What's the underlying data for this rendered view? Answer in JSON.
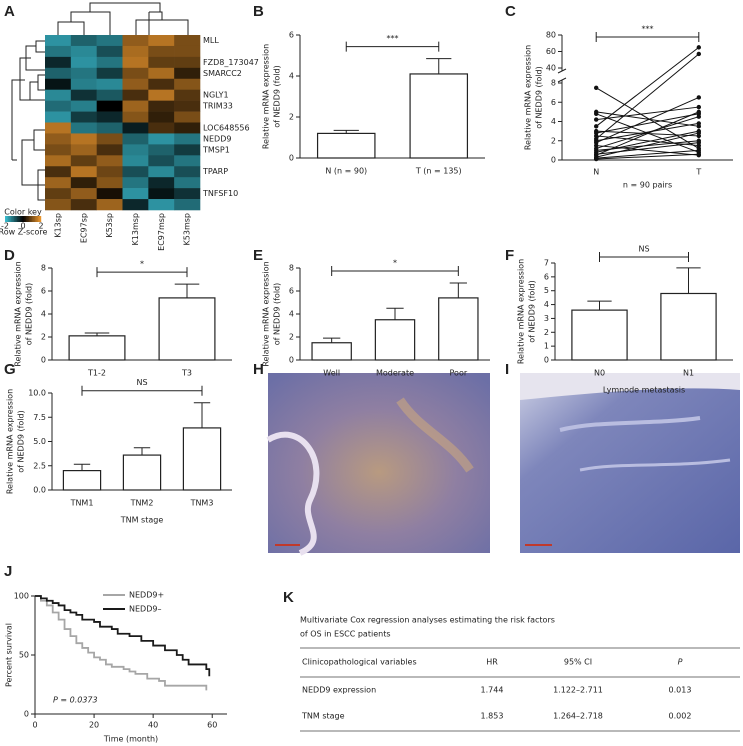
{
  "chart_data": [
    {
      "type": "heatmap",
      "panel": "A",
      "columns": [
        "K13sp",
        "EC97sp",
        "K53sp",
        "K13msp",
        "EC97msp",
        "K53msp"
      ],
      "row_labels": [
        "MLL",
        null,
        "FZD8_173047",
        "SMARCC2",
        null,
        "NGLY1",
        "TRIM33",
        null,
        "LOC648556",
        "NEDD9",
        "TMSP1",
        null,
        "TPARP",
        null,
        "TNFSF10",
        null
      ],
      "values": [
        [
          -1.5,
          -1.0,
          -1.2,
          1.2,
          1.5,
          1.0
        ],
        [
          -1.2,
          -1.4,
          -0.8,
          1.4,
          1.0,
          1.0
        ],
        [
          -0.4,
          -1.5,
          -1.2,
          1.5,
          0.8,
          0.8
        ],
        [
          -1.0,
          -1.2,
          -0.6,
          1.0,
          1.4,
          0.4
        ],
        [
          -0.2,
          -1.3,
          -1.4,
          1.2,
          0.6,
          1.1
        ],
        [
          -1.4,
          -0.5,
          -0.9,
          0.6,
          1.5,
          0.7
        ],
        [
          -1.1,
          -1.3,
          0.0,
          1.3,
          0.5,
          0.6
        ],
        [
          -1.5,
          -0.6,
          -0.4,
          1.1,
          0.4,
          1.0
        ],
        [
          1.5,
          -1.2,
          -1.0,
          -0.3,
          0.6,
          0.4
        ],
        [
          1.2,
          1.5,
          1.0,
          -1.0,
          -1.5,
          -1.2
        ],
        [
          1.0,
          1.3,
          0.6,
          -1.3,
          -1.0,
          -0.6
        ],
        [
          1.4,
          0.8,
          1.2,
          -1.4,
          -0.8,
          -1.2
        ],
        [
          0.6,
          1.5,
          0.9,
          -0.8,
          -1.4,
          -0.8
        ],
        [
          1.3,
          0.4,
          1.1,
          -1.2,
          -0.4,
          -1.2
        ],
        [
          0.8,
          1.2,
          0.2,
          -1.5,
          -0.2,
          -0.5
        ],
        [
          1.1,
          0.6,
          1.3,
          -0.4,
          -1.5,
          -1.1
        ]
      ],
      "zlim": [
        -2,
        2
      ],
      "zticks": [
        -2,
        0,
        2
      ],
      "colors": [
        "#3cc3d6",
        "#000000",
        "#f29a2e"
      ],
      "color_key_title": "Color key",
      "color_key_label": "Row Z-score"
    },
    {
      "type": "bar",
      "panel": "B",
      "categories": [
        "N (n = 90)",
        "T (n = 135)"
      ],
      "values": [
        1.2,
        4.1
      ],
      "errors": [
        0.15,
        0.75
      ],
      "ylim": [
        0,
        6
      ],
      "yticks": [
        0,
        2,
        4,
        6
      ],
      "ylabel": [
        "Relative mRNA expression",
        "of NEDD9 (fold)"
      ],
      "significance": "***"
    },
    {
      "type": "paired",
      "panel": "C",
      "categories": [
        "N",
        "T"
      ],
      "N": [
        7.5,
        5,
        4.8,
        4.2,
        3.5,
        3,
        2.8,
        2.5,
        2.2,
        2,
        1.8,
        1.5,
        1.2,
        1,
        0.8,
        0.6,
        0.5,
        0.3,
        0.2,
        0.1
      ],
      "T": [
        1.2,
        3.5,
        0.8,
        5.5,
        65,
        2.5,
        4.8,
        1.5,
        57,
        3.8,
        6.5,
        0.5,
        4.5,
        2,
        3,
        1.8,
        5,
        2.8,
        1,
        0.6
      ],
      "ylim": [
        0,
        80
      ],
      "ybreak": [
        8,
        40
      ],
      "yticks": [
        0,
        2,
        4,
        6,
        8,
        40,
        60,
        80
      ],
      "ylabel": [
        "Relative mRNA expression",
        "of NEDD9 (fold)"
      ],
      "xlabel": "n = 90 pairs",
      "significance": "***"
    },
    {
      "type": "bar",
      "panel": "D",
      "categories": [
        "T1-2",
        "T3"
      ],
      "values": [
        2.1,
        5.4
      ],
      "errors": [
        0.25,
        1.2
      ],
      "ylim": [
        0,
        8
      ],
      "yticks": [
        0,
        2,
        4,
        6,
        8
      ],
      "ylabel": [
        "Relative mRNA expression",
        "of NEDD9 (fold)"
      ],
      "significance": "*"
    },
    {
      "type": "bar",
      "panel": "E",
      "categories": [
        "Well",
        "Moderate",
        "Poor"
      ],
      "values": [
        1.5,
        3.5,
        5.4
      ],
      "errors": [
        0.4,
        1.0,
        1.3
      ],
      "ylim": [
        0,
        8
      ],
      "yticks": [
        0,
        2,
        4,
        6,
        8
      ],
      "ylabel": [
        "Relative mRNA expression",
        "of NEDD9 (fold)"
      ],
      "significance": "*"
    },
    {
      "type": "bar",
      "panel": "F",
      "categories": [
        "N0",
        "N1"
      ],
      "values": [
        3.6,
        4.8
      ],
      "errors": [
        0.65,
        1.85
      ],
      "ylim": [
        0,
        7
      ],
      "yticks": [
        0,
        1,
        2,
        3,
        4,
        5,
        6,
        7
      ],
      "ylabel": [
        "Relative mRNA expression",
        "of NEDD9 (fold)"
      ],
      "xlabel": "Lymnode metastasis",
      "significance": "NS"
    },
    {
      "type": "bar",
      "panel": "G",
      "categories": [
        "TNM1",
        "TNM2",
        "TNM3"
      ],
      "values": [
        2.0,
        3.6,
        6.4
      ],
      "errors": [
        0.65,
        0.75,
        2.6
      ],
      "ylim": [
        0,
        10
      ],
      "yticks": [
        {
          "value": 0,
          "label": "0.0"
        },
        {
          "value": 2.5,
          "label": "2.5"
        },
        {
          "value": 5,
          "label": "5.0"
        },
        {
          "value": 7.5,
          "label": "7.5"
        },
        {
          "value": 10,
          "label": "10.0"
        }
      ],
      "ylabel": [
        "Relative mRNA expression",
        "of NEDD9 (fold)"
      ],
      "xlabel": "TNM stage",
      "significance": "NS"
    },
    {
      "type": "step",
      "panel": "J",
      "series": [
        {
          "name": "NEDD9+",
          "color": "#a6a6a6",
          "x": [
            0,
            2,
            4,
            6,
            8,
            10,
            12,
            14,
            16,
            18,
            20,
            22,
            24,
            26,
            30,
            32,
            34,
            38,
            42,
            44,
            58
          ],
          "values": [
            100,
            96,
            92,
            86,
            80,
            72,
            66,
            60,
            56,
            52,
            48,
            46,
            42,
            40,
            38,
            36,
            34,
            30,
            28,
            24,
            20
          ]
        },
        {
          "name": "NEDD9–",
          "color": "#1a1a1a",
          "x": [
            0,
            2,
            4,
            6,
            8,
            10,
            12,
            14,
            16,
            20,
            22,
            26,
            28,
            32,
            36,
            40,
            44,
            48,
            50,
            52,
            58,
            59
          ],
          "values": [
            100,
            98,
            96,
            94,
            92,
            88,
            86,
            84,
            80,
            78,
            74,
            72,
            68,
            66,
            62,
            58,
            54,
            50,
            46,
            42,
            38,
            32
          ]
        }
      ],
      "xlim": [
        0,
        65
      ],
      "xticks": [
        0,
        20,
        40,
        60
      ],
      "ylim": [
        0,
        100
      ],
      "yticks": [
        0,
        50,
        100
      ],
      "xlabel": "Time (month)",
      "ylabel": "Percent survival",
      "annotation": "P = 0.0373"
    }
  ],
  "images": [
    {
      "panel": "H"
    },
    {
      "panel": "I"
    }
  ],
  "table": {
    "panel": "K",
    "title": [
      "Multivariate Cox regression analyses estimating the risk factors",
      "of OS in ESCC patients"
    ],
    "header": [
      "Clinicopathological variables",
      "HR",
      "95% CI",
      "P"
    ],
    "rows": [
      [
        "NEDD9 expression",
        "1.744",
        "1.122–2.711",
        "0.013"
      ],
      [
        "TNM stage",
        "1.853",
        "1.264–2.718",
        "0.002"
      ]
    ]
  }
}
